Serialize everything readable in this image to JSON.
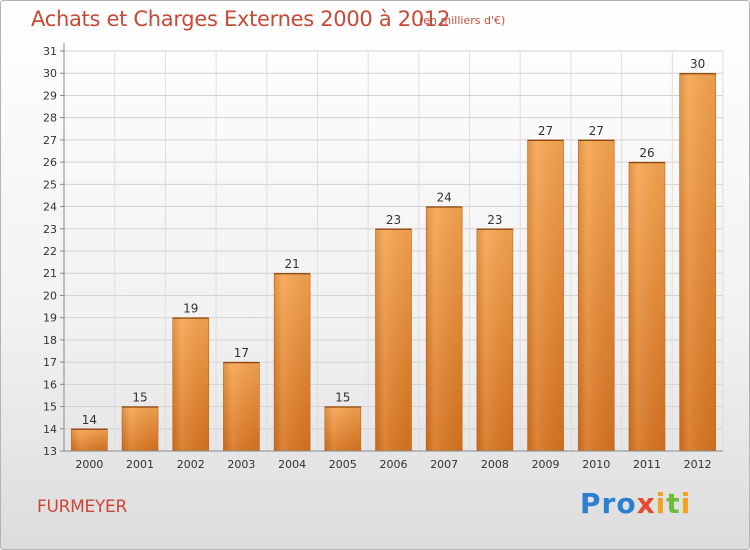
{
  "title": "Achats et Charges Externes 2000 à 2012",
  "unit_label": "(en milliers d'€)",
  "commune": "FURMEYER",
  "logo": {
    "p1": "Pro",
    "p2": "x",
    "p3": "i",
    "p4": "t",
    "p5": "i"
  },
  "colors": {
    "bar_top": "#f7a550",
    "bar_bottom": "#d8741f",
    "title": "#c74a36"
  },
  "chart_data": {
    "type": "bar",
    "title": "Achats et Charges Externes 2000 à 2012",
    "xlabel": "",
    "ylabel": "",
    "categories": [
      "2000",
      "2001",
      "2002",
      "2003",
      "2004",
      "2005",
      "2006",
      "2007",
      "2008",
      "2009",
      "2010",
      "2011",
      "2012"
    ],
    "values": [
      14,
      15,
      19,
      17,
      21,
      15,
      23,
      24,
      23,
      27,
      27,
      26,
      30
    ],
    "ylim": [
      13,
      31
    ],
    "yticks": [
      13,
      14,
      15,
      16,
      17,
      18,
      19,
      20,
      21,
      22,
      23,
      24,
      25,
      26,
      27,
      28,
      29,
      30,
      31
    ],
    "grid": true,
    "legend": "none"
  }
}
